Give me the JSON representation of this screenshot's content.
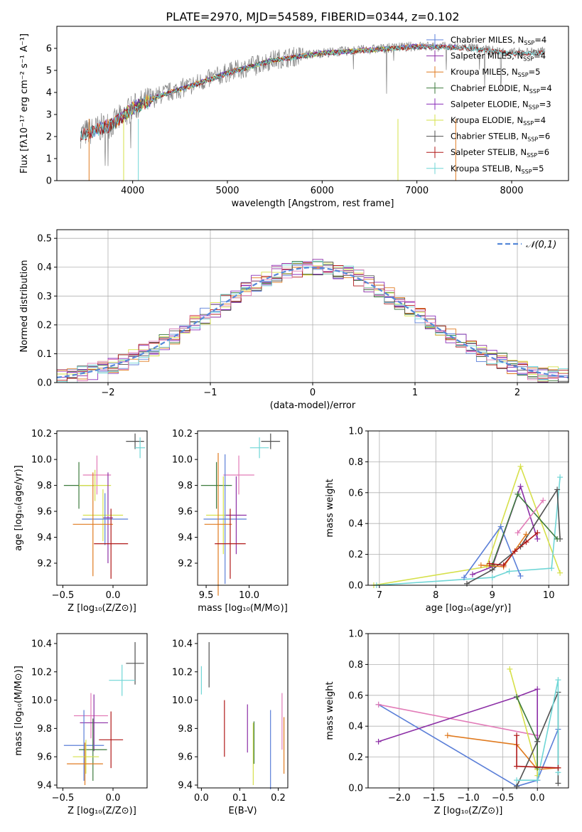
{
  "figure_title": "PLATE=2970, MJD=54589, FIBERID=0344, z=0.102",
  "colors": {
    "chabrier_miles": "#5b7fd8",
    "salpeter_miles": "#8c2fa6",
    "kroupa_miles": "#e07b20",
    "chabrier_elodie": "#3d7a3d",
    "salpeter_elodie": "#8a2db8",
    "kroupa_elodie": "#d6e04a",
    "chabrier_stelib": "#505050",
    "salpeter_stelib": "#b01818",
    "kroupa_stelib": "#6fd6d6",
    "data": "#808080",
    "pink": "#e27cb8",
    "gaussian": "#5588d8"
  },
  "chart_data": [
    {
      "id": "spectrum",
      "type": "line",
      "xlabel": "wavelength [Angstrom, rest frame]",
      "ylabel": "Flux [fλ10⁻¹⁷ erg cm⁻² s⁻¹ A⁻¹]",
      "xlim": [
        3200,
        8600
      ],
      "ylim": [
        0,
        7
      ],
      "xticks": [
        4000,
        5000,
        6000,
        7000,
        8000
      ],
      "yticks": [
        0,
        1,
        2,
        3,
        4,
        5,
        6
      ],
      "legend_position": "upper right",
      "legend": [
        {
          "label": "Chabrier MILES, N_SSP=4",
          "color_key": "chabrier_miles"
        },
        {
          "label": "Salpeter MILES, N_SSP=4",
          "color_key": "salpeter_miles"
        },
        {
          "label": "Kroupa MILES, N_SSP=5",
          "color_key": "kroupa_miles"
        },
        {
          "label": "Chabrier ELODIE, N_SSP=4",
          "color_key": "chabrier_elodie"
        },
        {
          "label": "Salpeter ELODIE, N_SSP=3",
          "color_key": "salpeter_elodie"
        },
        {
          "label": "Kroupa ELODIE, N_SSP=4",
          "color_key": "kroupa_elodie"
        },
        {
          "label": "Chabrier STELIB, N_SSP=6",
          "color_key": "chabrier_stelib"
        },
        {
          "label": "Salpeter STELIB, N_SSP=6",
          "color_key": "salpeter_stelib"
        },
        {
          "label": "Kroupa STELIB, N_SSP=5",
          "color_key": "kroupa_stelib"
        }
      ],
      "continuum": {
        "x": [
          3450,
          3600,
          3800,
          4000,
          4300,
          4600,
          5000,
          5500,
          6000,
          6500,
          7000,
          7500,
          8000,
          8350
        ],
        "y": [
          2.1,
          2.3,
          2.6,
          3.3,
          3.9,
          4.3,
          4.9,
          5.5,
          5.8,
          5.95,
          6.1,
          6.05,
          5.8,
          5.85
        ]
      }
    },
    {
      "id": "residuals",
      "type": "histogram",
      "xlabel": "(data-model)/error",
      "ylabel": "Normed distribution",
      "xlim": [
        -2.5,
        2.5
      ],
      "ylim": [
        0,
        0.53
      ],
      "xticks": [
        -2,
        -1,
        0,
        1,
        2
      ],
      "yticks": [
        0.0,
        0.1,
        0.2,
        0.3,
        0.4,
        0.5
      ],
      "grid": true,
      "reference_label": "𝒩(0,1)",
      "legend_position": "upper right"
    },
    {
      "id": "age_vs_Z",
      "type": "errorbar",
      "xlabel": "Z [log₁₀(Z/Z⊙)]",
      "ylabel": "age  [log₁₀(age/yr)]",
      "xlim": [
        -0.56,
        0.34
      ],
      "ylim": [
        9.03,
        10.22
      ],
      "xticks": [
        -0.5,
        0.0
      ],
      "yticks": [
        9.2,
        9.4,
        9.6,
        9.8,
        10.0,
        10.2
      ],
      "points": [
        {
          "x": 0.22,
          "y": 10.14,
          "ex": 0.09,
          "ey": 0.06,
          "color_key": "chabrier_stelib"
        },
        {
          "x": 0.27,
          "y": 10.09,
          "ex": 0.05,
          "ey": 0.08,
          "color_key": "kroupa_stelib"
        },
        {
          "x": -0.16,
          "y": 9.88,
          "ex": 0.14,
          "ey": 0.15,
          "color_key": "pink"
        },
        {
          "x": -0.34,
          "y": 9.8,
          "ex": 0.15,
          "ey": 0.18,
          "color_key": "chabrier_elodie"
        },
        {
          "x": -0.18,
          "y": 9.8,
          "ex": 0.16,
          "ey": 0.12,
          "color_key": "kroupa_elodie"
        },
        {
          "x": -0.05,
          "y": 9.55,
          "ex": 0.05,
          "ey": 0.35,
          "color_key": "salpeter_miles"
        },
        {
          "x": -0.1,
          "y": 9.57,
          "ex": 0.2,
          "ey": 0.2,
          "color_key": "kroupa_elodie"
        },
        {
          "x": -0.08,
          "y": 9.54,
          "ex": 0.23,
          "ey": 0.2,
          "color_key": "chabrier_miles"
        },
        {
          "x": -0.2,
          "y": 9.5,
          "ex": 0.2,
          "ey": 0.4,
          "color_key": "kroupa_miles"
        },
        {
          "x": -0.02,
          "y": 9.35,
          "ex": 0.17,
          "ey": 0.27,
          "color_key": "salpeter_stelib"
        }
      ]
    },
    {
      "id": "age_vs_mass",
      "type": "errorbar",
      "xlabel": "mass [log₁₀(M/M⊙)]",
      "ylabel": "",
      "xlim": [
        9.4,
        10.45
      ],
      "ylim": [
        9.03,
        10.22
      ],
      "xticks": [
        9.5,
        10.0
      ],
      "yticks": [
        9.2,
        9.4,
        9.6,
        9.8,
        10.0,
        10.2
      ],
      "points": [
        {
          "x": 10.25,
          "y": 10.14,
          "ex": 0.11,
          "ey": 0.06,
          "color_key": "chabrier_stelib"
        },
        {
          "x": 10.12,
          "y": 10.09,
          "ex": 0.11,
          "ey": 0.08,
          "color_key": "kroupa_stelib"
        },
        {
          "x": 9.88,
          "y": 9.88,
          "ex": 0.18,
          "ey": 0.15,
          "color_key": "pink"
        },
        {
          "x": 9.62,
          "y": 9.8,
          "ex": 0.18,
          "ey": 0.18,
          "color_key": "chabrier_elodie"
        },
        {
          "x": 9.7,
          "y": 9.57,
          "ex": 0.2,
          "ey": 0.3,
          "color_key": "kroupa_elodie"
        },
        {
          "x": 9.72,
          "y": 9.54,
          "ex": 0.25,
          "ey": 0.5,
          "color_key": "chabrier_miles"
        },
        {
          "x": 9.64,
          "y": 9.5,
          "ex": 0.16,
          "ey": 0.55,
          "color_key": "kroupa_miles"
        },
        {
          "x": 9.85,
          "y": 9.57,
          "ex": 0.12,
          "ey": 0.3,
          "color_key": "salpeter_miles"
        },
        {
          "x": 9.78,
          "y": 9.35,
          "ex": 0.18,
          "ey": 0.27,
          "color_key": "salpeter_stelib"
        }
      ]
    },
    {
      "id": "weight_vs_age",
      "type": "line",
      "xlabel": "age  [log₁₀(age/yr)]",
      "ylabel": "mass weight",
      "xlim": [
        6.8,
        10.35
      ],
      "ylim": [
        0,
        1
      ],
      "xticks": [
        7,
        8,
        9,
        10
      ],
      "yticks": [
        0.0,
        0.2,
        0.4,
        0.6,
        0.8,
        1.0
      ],
      "grid": true,
      "series": [
        {
          "color_key": "kroupa_elodie",
          "x": [
            6.9,
            8.9,
            9.5,
            10.2
          ],
          "y": [
            0.0,
            0.12,
            0.77,
            0.08
          ]
        },
        {
          "color_key": "kroupa_stelib",
          "x": [
            6.95,
            9.0,
            9.3,
            10.05,
            10.2
          ],
          "y": [
            0.0,
            0.05,
            0.09,
            0.11,
            0.7
          ]
        },
        {
          "color_key": "salpeter_miles",
          "x": [
            8.65,
            9.0,
            9.5,
            9.8
          ],
          "y": [
            0.07,
            0.12,
            0.64,
            0.3
          ]
        },
        {
          "color_key": "chabrier_miles",
          "x": [
            8.5,
            9.15,
            9.5
          ],
          "y": [
            0.05,
            0.38,
            0.06
          ]
        },
        {
          "color_key": "chabrier_stelib",
          "x": [
            8.55,
            9.0,
            9.5,
            10.15,
            10.2
          ],
          "y": [
            0.01,
            0.1,
            0.25,
            0.62,
            0.3
          ]
        },
        {
          "color_key": "chabrier_elodie",
          "x": [
            9.0,
            9.45,
            10.15
          ],
          "y": [
            0.13,
            0.59,
            0.3
          ]
        },
        {
          "color_key": "kroupa_miles",
          "x": [
            8.8,
            9.2,
            9.6
          ],
          "y": [
            0.13,
            0.12,
            0.33
          ]
        },
        {
          "color_key": "salpeter_stelib",
          "x": [
            8.95,
            9.2,
            9.4,
            9.6,
            9.8
          ],
          "y": [
            0.14,
            0.13,
            0.22,
            0.28,
            0.34
          ]
        },
        {
          "color_key": "pink",
          "x": [
            9.45,
            9.9
          ],
          "y": [
            0.34,
            0.55
          ]
        }
      ]
    },
    {
      "id": "mass_vs_Z",
      "type": "errorbar",
      "xlabel": "Z [log₁₀(Z/Z⊙)]",
      "ylabel": "mass [log₁₀(M/M⊙)]",
      "xlim": [
        -0.56,
        0.34
      ],
      "ylim": [
        9.38,
        10.47
      ],
      "xticks": [
        -0.5,
        0.0
      ],
      "yticks": [
        9.4,
        9.6,
        9.8,
        10.0,
        10.2,
        10.4
      ],
      "points": [
        {
          "x": 0.22,
          "y": 10.26,
          "ex": 0.09,
          "ey": 0.15,
          "color_key": "chabrier_stelib"
        },
        {
          "x": 0.09,
          "y": 10.14,
          "ex": 0.13,
          "ey": 0.11,
          "color_key": "kroupa_stelib"
        },
        {
          "x": -0.22,
          "y": 9.89,
          "ex": 0.17,
          "ey": 0.16,
          "color_key": "pink"
        },
        {
          "x": -0.19,
          "y": 9.84,
          "ex": 0.14,
          "ey": 0.2,
          "color_key": "salpeter_miles"
        },
        {
          "x": -0.02,
          "y": 9.72,
          "ex": 0.12,
          "ey": 0.2,
          "color_key": "salpeter_stelib"
        },
        {
          "x": -0.29,
          "y": 9.68,
          "ex": 0.2,
          "ey": 0.25,
          "color_key": "chabrier_miles"
        },
        {
          "x": -0.2,
          "y": 9.65,
          "ex": 0.14,
          "ey": 0.22,
          "color_key": "chabrier_elodie"
        },
        {
          "x": -0.27,
          "y": 9.6,
          "ex": 0.13,
          "ey": 0.12,
          "color_key": "kroupa_elodie"
        },
        {
          "x": -0.28,
          "y": 9.55,
          "ex": 0.18,
          "ey": 0.15,
          "color_key": "kroupa_miles"
        }
      ]
    },
    {
      "id": "mass_vs_ebv",
      "type": "errorbar",
      "xlabel": "E(B-V)",
      "ylabel": "",
      "xlim": [
        -0.01,
        0.225
      ],
      "ylim": [
        9.38,
        10.47
      ],
      "xticks": [
        0.0,
        0.1,
        0.2
      ],
      "yticks": [
        9.4,
        9.6,
        9.8,
        10.0,
        10.2,
        10.4
      ],
      "points": [
        {
          "x": 0.0,
          "y": 10.14,
          "ex": 0.0,
          "ey": 0.1,
          "color_key": "kroupa_stelib"
        },
        {
          "x": 0.02,
          "y": 10.25,
          "ex": 0.0,
          "ey": 0.16,
          "color_key": "chabrier_stelib"
        },
        {
          "x": 0.06,
          "y": 9.8,
          "ex": 0.0,
          "ey": 0.2,
          "color_key": "salpeter_stelib"
        },
        {
          "x": 0.12,
          "y": 9.8,
          "ex": 0.0,
          "ey": 0.17,
          "color_key": "salpeter_miles"
        },
        {
          "x": 0.135,
          "y": 9.62,
          "ex": 0.0,
          "ey": 0.22,
          "color_key": "kroupa_elodie"
        },
        {
          "x": 0.137,
          "y": 9.7,
          "ex": 0.0,
          "ey": 0.15,
          "color_key": "chabrier_elodie"
        },
        {
          "x": 0.18,
          "y": 9.65,
          "ex": 0.0,
          "ey": 0.28,
          "color_key": "chabrier_miles"
        },
        {
          "x": 0.21,
          "y": 9.85,
          "ex": 0.0,
          "ey": 0.2,
          "color_key": "pink"
        },
        {
          "x": 0.215,
          "y": 9.68,
          "ex": 0.0,
          "ey": 0.2,
          "color_key": "kroupa_miles"
        }
      ]
    },
    {
      "id": "weight_vs_Z",
      "type": "line",
      "xlabel": "Z [log₁₀(Z/Z⊙)]",
      "ylabel": "mass weight",
      "xlim": [
        -2.45,
        0.45
      ],
      "ylim": [
        0,
        1
      ],
      "xticks": [
        -2.0,
        -1.5,
        -1.0,
        -0.5,
        0.0
      ],
      "yticks": [
        0.0,
        0.2,
        0.4,
        0.6,
        0.8,
        1.0
      ],
      "grid": true,
      "series": [
        {
          "color_key": "chabrier_miles",
          "x": [
            -2.3,
            -0.3,
            0.0,
            0.3
          ],
          "y": [
            0.54,
            0.01,
            0.05,
            0.38
          ]
        },
        {
          "color_key": "pink",
          "x": [
            -2.3,
            0.0
          ],
          "y": [
            0.54,
            0.34
          ]
        },
        {
          "color_key": "salpeter_miles",
          "x": [
            -2.3,
            -0.3,
            0.0,
            0.0
          ],
          "y": [
            0.3,
            0.59,
            0.64,
            0.05
          ]
        },
        {
          "color_key": "kroupa_miles",
          "x": [
            -1.3,
            -0.3,
            0.0,
            0.3
          ],
          "y": [
            0.34,
            0.28,
            0.12,
            0.13
          ]
        },
        {
          "color_key": "kroupa_elodie",
          "x": [
            -0.4,
            0.0,
            0.0
          ],
          "y": [
            0.77,
            0.12,
            0.08
          ]
        },
        {
          "color_key": "chabrier_elodie",
          "x": [
            -0.3,
            0.0,
            0.0
          ],
          "y": [
            0.59,
            0.3,
            0.13
          ]
        },
        {
          "color_key": "chabrier_stelib",
          "x": [
            -0.3,
            0.0,
            0.3,
            0.3
          ],
          "y": [
            0.01,
            0.3,
            0.62,
            0.03
          ]
        },
        {
          "color_key": "kroupa_stelib",
          "x": [
            -0.3,
            0.0,
            0.3,
            0.3
          ],
          "y": [
            0.05,
            0.05,
            0.7,
            0.1
          ]
        },
        {
          "color_key": "salpeter_stelib",
          "x": [
            -0.3,
            -0.3,
            0.3
          ],
          "y": [
            0.34,
            0.14,
            0.13
          ]
        }
      ]
    }
  ]
}
